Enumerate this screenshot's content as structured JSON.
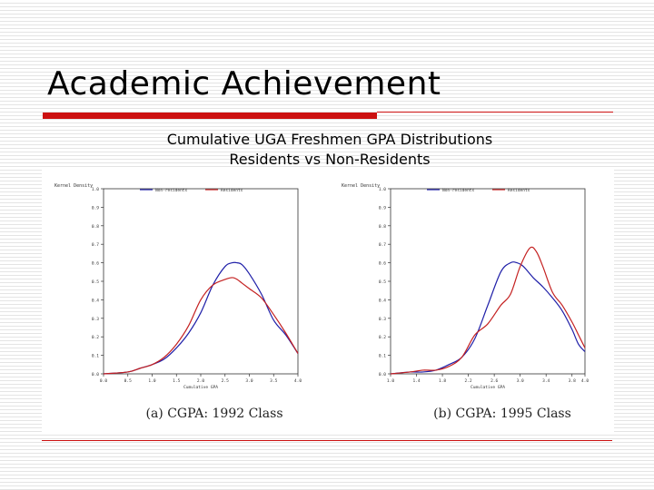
{
  "slide": {
    "title": "Academic Achievement",
    "subtitle_line1": "Cumulative UGA Freshmen GPA Distributions",
    "subtitle_line2": "Residents vs Non-Residents"
  },
  "colors": {
    "non_residents": "#1f1fa8",
    "residents": "#c42020",
    "accent": "#cc1111"
  },
  "chart_data": [
    {
      "type": "line",
      "caption": "(a) CGPA: 1992 Class",
      "ylabel": "Kernel Density",
      "xlabel": "Cumulative GPA",
      "xlim": [
        0.0,
        4.0
      ],
      "ylim": [
        0.0,
        1.0
      ],
      "xticks": [
        0.0,
        0.5,
        1.0,
        1.5,
        2.0,
        2.5,
        3.0,
        3.5,
        4.0
      ],
      "xtick_labels": [
        "0.0",
        "0.5",
        "1.0",
        "1.5",
        "2.0",
        "2.5",
        "3.0",
        "3.5",
        "4.0"
      ],
      "yticks": [
        0.0,
        0.1,
        0.2,
        0.3,
        0.4,
        0.5,
        0.6,
        0.7,
        0.8,
        0.9,
        1.0
      ],
      "ytick_labels": [
        "0.0",
        "0.1",
        "0.2",
        "0.3",
        "0.4",
        "0.5",
        "0.6",
        "0.7",
        "0.8",
        "0.9",
        "1.0"
      ],
      "legend_position": "top",
      "series": [
        {
          "name": "Non-residents",
          "x": [
            0.0,
            0.5,
            0.75,
            1.0,
            1.25,
            1.5,
            1.75,
            2.0,
            2.25,
            2.5,
            2.65,
            2.75,
            2.85,
            3.0,
            3.25,
            3.5,
            3.75,
            4.0
          ],
          "y": [
            0.0,
            0.01,
            0.03,
            0.05,
            0.08,
            0.14,
            0.22,
            0.33,
            0.48,
            0.58,
            0.6,
            0.6,
            0.59,
            0.54,
            0.43,
            0.29,
            0.21,
            0.11
          ]
        },
        {
          "name": "Residents",
          "x": [
            0.0,
            0.5,
            0.75,
            1.0,
            1.25,
            1.5,
            1.75,
            2.0,
            2.25,
            2.5,
            2.65,
            2.75,
            2.85,
            3.0,
            3.25,
            3.5,
            3.75,
            4.0
          ],
          "y": [
            0.0,
            0.01,
            0.03,
            0.05,
            0.09,
            0.16,
            0.26,
            0.4,
            0.48,
            0.51,
            0.52,
            0.51,
            0.49,
            0.46,
            0.41,
            0.32,
            0.22,
            0.11
          ]
        }
      ]
    },
    {
      "type": "line",
      "caption": "(b) CGPA: 1995 Class",
      "ylabel": "Kernel Density",
      "xlabel": "Cumulative GPA",
      "xlim": [
        1.0,
        4.0
      ],
      "ylim": [
        0.0,
        1.0
      ],
      "xticks": [
        1.0,
        1.4,
        1.8,
        2.2,
        2.6,
        3.0,
        3.4,
        3.8,
        4.0
      ],
      "xtick_labels": [
        "1.0",
        "1.4",
        "1.8",
        "2.2",
        "2.6",
        "3.0",
        "3.4",
        "3.8",
        "4.0"
      ],
      "yticks": [
        0.0,
        0.1,
        0.2,
        0.3,
        0.4,
        0.5,
        0.6,
        0.7,
        0.8,
        0.9,
        1.0
      ],
      "ytick_labels": [
        "0.0",
        "0.1",
        "0.2",
        "0.3",
        "0.4",
        "0.5",
        "0.6",
        "0.7",
        "0.8",
        "0.9",
        "1.0"
      ],
      "legend_position": "top",
      "series": [
        {
          "name": "Non-residents",
          "x": [
            1.0,
            1.3,
            1.5,
            1.7,
            1.9,
            2.1,
            2.3,
            2.5,
            2.7,
            2.85,
            2.95,
            3.05,
            3.2,
            3.35,
            3.5,
            3.65,
            3.8,
            3.9,
            4.0
          ],
          "y": [
            0.0,
            0.01,
            0.01,
            0.02,
            0.05,
            0.09,
            0.19,
            0.37,
            0.55,
            0.6,
            0.6,
            0.58,
            0.52,
            0.47,
            0.41,
            0.34,
            0.24,
            0.16,
            0.12
          ]
        },
        {
          "name": "Residents",
          "x": [
            1.0,
            1.3,
            1.5,
            1.7,
            1.9,
            2.1,
            2.3,
            2.5,
            2.7,
            2.85,
            3.0,
            3.15,
            3.25,
            3.35,
            3.5,
            3.65,
            3.8,
            3.9,
            4.0
          ],
          "y": [
            0.0,
            0.01,
            0.02,
            0.02,
            0.04,
            0.09,
            0.21,
            0.27,
            0.37,
            0.43,
            0.58,
            0.68,
            0.66,
            0.58,
            0.44,
            0.37,
            0.28,
            0.21,
            0.14
          ]
        }
      ]
    }
  ]
}
